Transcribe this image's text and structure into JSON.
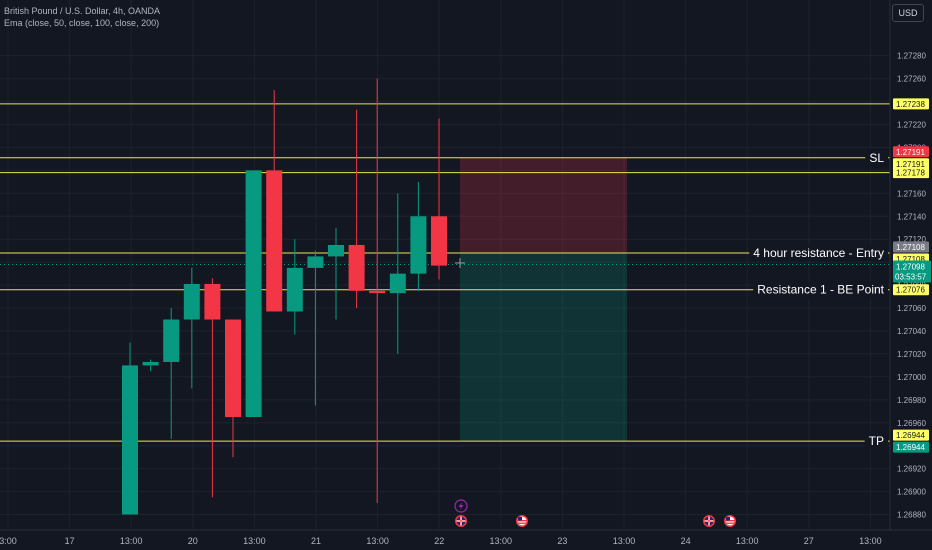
{
  "header": {
    "symbol_line": "British Pound / U.S. Dollar, 4h, OANDA",
    "indicator_line": "Ema (close, 50, close, 100, close, 200)"
  },
  "currency_button": "USD",
  "chart_data": {
    "type": "candlestick",
    "y_range": [
      1.2687,
      1.27305
    ],
    "y_ticks": [
      "1.27280",
      "1.27260",
      "1.27240",
      "1.27220",
      "1.27200",
      "1.27180",
      "1.27160",
      "1.27140",
      "1.27120",
      "1.27100",
      "1.27080",
      "1.27060",
      "1.27040",
      "1.27020",
      "1.27000",
      "1.26980",
      "1.26960",
      "1.26940",
      "1.26920",
      "1.26900",
      "1.26880"
    ],
    "x_ticks": [
      "3:00",
      "17",
      "13:00",
      "20",
      "13:00",
      "21",
      "13:00",
      "22",
      "13:00",
      "23",
      "13:00",
      "24",
      "13:00",
      "27",
      "13:00"
    ],
    "candles": [
      {
        "o": 1.2688,
        "h": 1.2703,
        "l": 1.2688,
        "c": 1.2701
      },
      {
        "o": 1.2701,
        "h": 1.27015,
        "l": 1.27005,
        "c": 1.27013
      },
      {
        "o": 1.27013,
        "h": 1.2706,
        "l": 1.26946,
        "c": 1.2705
      },
      {
        "o": 1.2705,
        "h": 1.27095,
        "l": 1.2699,
        "c": 1.27081
      },
      {
        "o": 1.27081,
        "h": 1.27086,
        "l": 1.26895,
        "c": 1.2705
      },
      {
        "o": 1.2705,
        "h": 1.2705,
        "l": 1.2693,
        "c": 1.26965
      },
      {
        "o": 1.26965,
        "h": 1.2718,
        "l": 1.26965,
        "c": 1.2718
      },
      {
        "o": 1.2718,
        "h": 1.2725,
        "l": 1.27057,
        "c": 1.27057
      },
      {
        "o": 1.27057,
        "h": 1.2712,
        "l": 1.27037,
        "c": 1.27095
      },
      {
        "o": 1.27095,
        "h": 1.2711,
        "l": 1.26975,
        "c": 1.27105
      },
      {
        "o": 1.27105,
        "h": 1.2713,
        "l": 1.2705,
        "c": 1.27115
      },
      {
        "o": 1.27115,
        "h": 1.27233,
        "l": 1.2706,
        "c": 1.27075
      },
      {
        "o": 1.27075,
        "h": 1.2726,
        "l": 1.2689,
        "c": 1.27073
      },
      {
        "o": 1.27073,
        "h": 1.2716,
        "l": 1.2702,
        "c": 1.2709
      },
      {
        "o": 1.2709,
        "h": 1.2717,
        "l": 1.27075,
        "c": 1.2714
      },
      {
        "o": 1.2714,
        "h": 1.27225,
        "l": 1.27085,
        "c": 1.27097
      }
    ],
    "horizontal_levels": [
      {
        "price": "1.27238",
        "color": "#e8e84a"
      },
      {
        "price": "1.27191",
        "color": "#e8e84a",
        "label": "SL"
      },
      {
        "price": "1.27178",
        "color": "#e8e84a"
      },
      {
        "price": "1.27108",
        "color": "#e8e84a",
        "label": "4 hour resistance - Entry"
      },
      {
        "price": "1.27076",
        "color": "#e8e84a",
        "label": "Resistance 1 - BE Point"
      },
      {
        "price": "1.26944",
        "color": "#e8e84a",
        "label": "TP"
      }
    ],
    "axis_badges": [
      {
        "text": "1.27191",
        "bg": "#f23645",
        "fg": "#ffffff",
        "price": 1.27191,
        "shift": -6
      },
      {
        "text": "1.27191",
        "bg": "#ffff66",
        "fg": "#131722",
        "price": 1.27191,
        "shift": 6
      },
      {
        "text": "1.27108",
        "bg": "#787b86",
        "fg": "#ffffff",
        "price": 1.27108,
        "shift": -6
      },
      {
        "text": "1.27108",
        "bg": "#ffff66",
        "fg": "#131722",
        "price": 1.27108,
        "shift": 6
      },
      {
        "text": "1.26944",
        "bg": "#ffff66",
        "fg": "#131722",
        "price": 1.26944,
        "shift": -6
      },
      {
        "text": "1.26944",
        "bg": "#089981",
        "fg": "#ffffff",
        "price": 1.26944,
        "shift": 6
      }
    ],
    "current_price": {
      "value": "1.27098",
      "countdown": "03:53:57",
      "color": "#089981"
    },
    "position": {
      "entry": 1.27108,
      "stop": 1.27191,
      "target": 1.26944
    },
    "colors": {
      "up": "#089981",
      "down": "#f23645",
      "level": "#e8e84a",
      "stop_zone": "#f23645",
      "target_zone": "#089981"
    },
    "event_icons": [
      "lightning-icon",
      "uk-flag-icon",
      "us-flag-icon",
      "uk-flag-icon",
      "us-flag-icon"
    ]
  }
}
